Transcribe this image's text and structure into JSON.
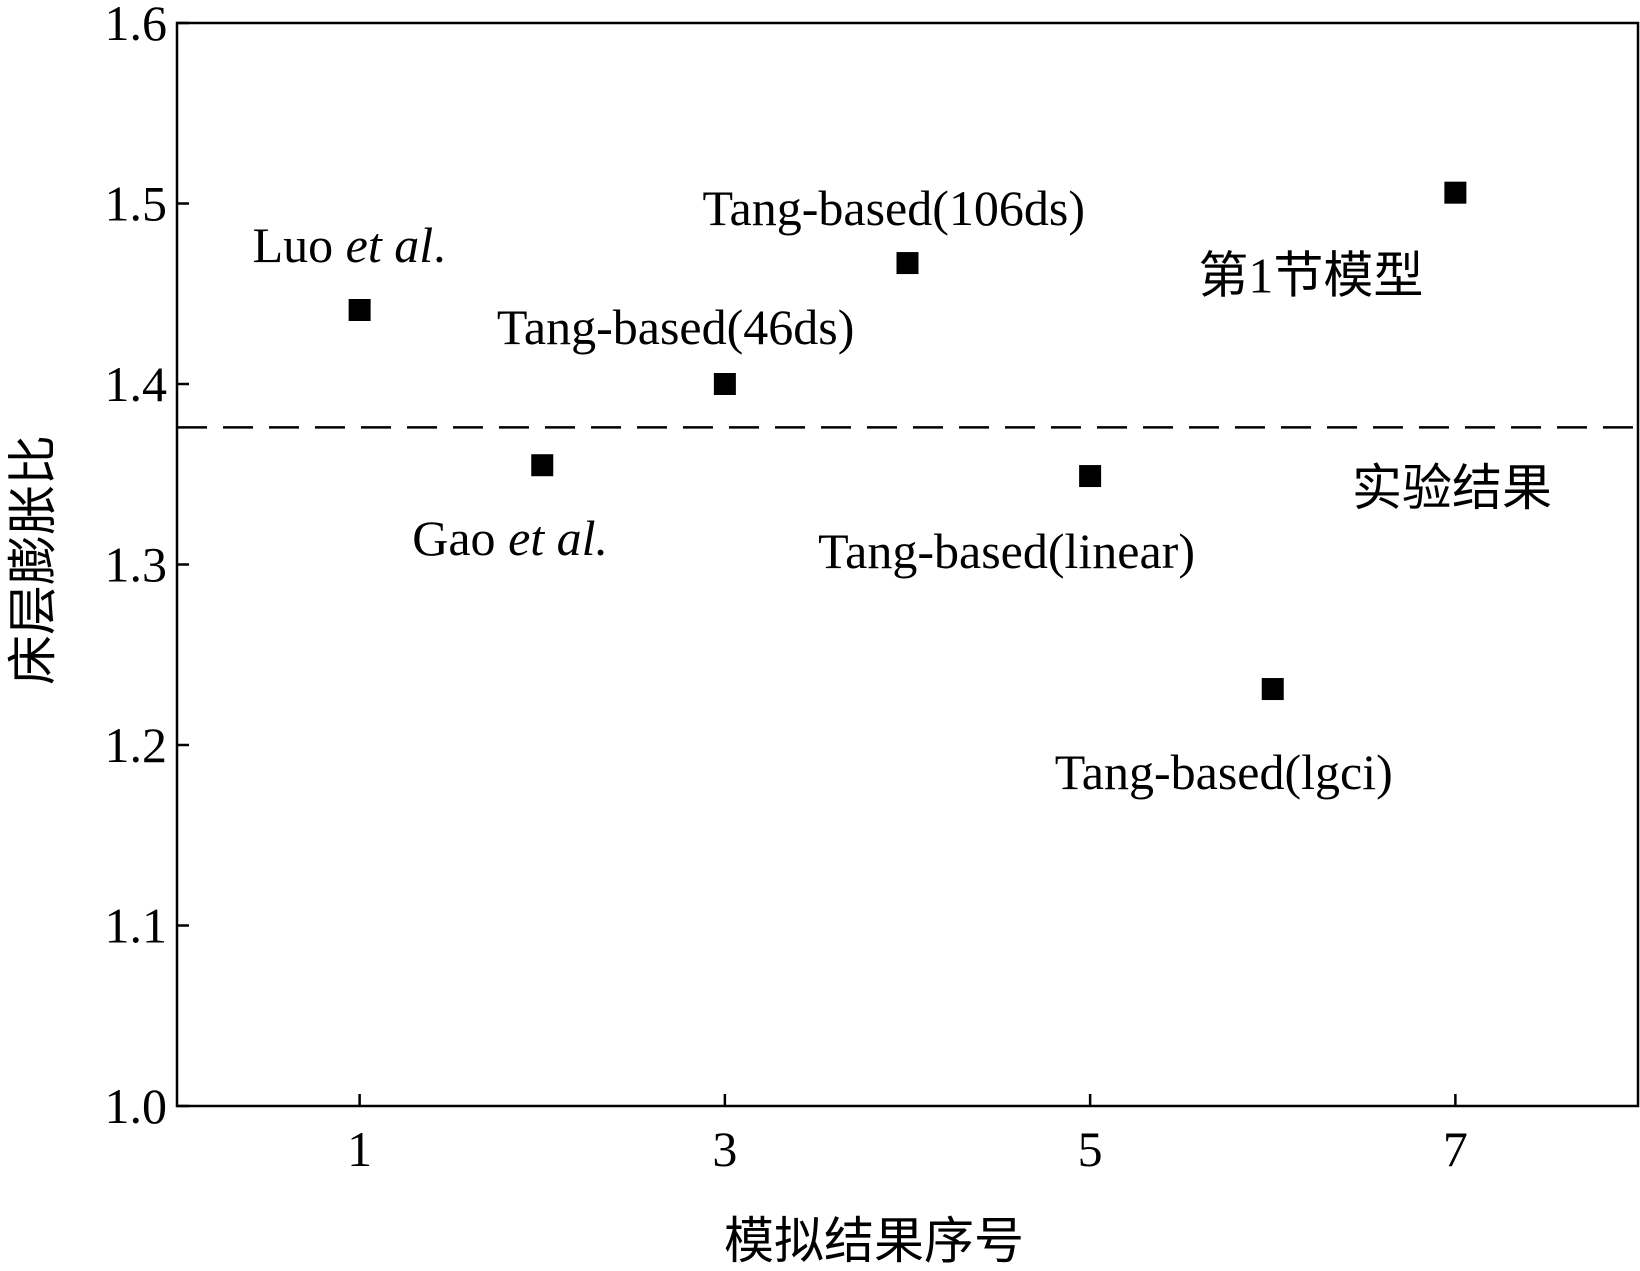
{
  "chart_data": {
    "type": "scatter",
    "xlabel": "模拟结果序号",
    "ylabel": "床层膨胀比",
    "xlim": [
      0,
      8
    ],
    "ylim": [
      1.0,
      1.6
    ],
    "xticks": [
      1,
      3,
      5,
      7
    ],
    "yticks": [
      1.0,
      1.1,
      1.2,
      1.3,
      1.4,
      1.5,
      1.6
    ],
    "grid": false,
    "legend": "none",
    "points": [
      {
        "x": 1,
        "y": 1.441,
        "label": "Luo",
        "label_italic": "et al",
        "label_tail": "."
      },
      {
        "x": 2,
        "y": 1.355,
        "label": "Gao",
        "label_italic": "et al.",
        "label_tail": ""
      },
      {
        "x": 3,
        "y": 1.4,
        "label": "Tang-based(46ds)",
        "label_italic": "",
        "label_tail": ""
      },
      {
        "x": 4,
        "y": 1.467,
        "label": "Tang-based(106ds)",
        "label_italic": "",
        "label_tail": ""
      },
      {
        "x": 5,
        "y": 1.349,
        "label": "Tang-based(linear)",
        "label_italic": "",
        "label_tail": ""
      },
      {
        "x": 6,
        "y": 1.231,
        "label": "Tang-based(lgci)",
        "label_italic": "",
        "label_tail": ""
      },
      {
        "x": 7,
        "y": 1.506,
        "label": "第1节模型",
        "label_italic": "",
        "label_tail": ""
      }
    ],
    "reference_line": {
      "y": 1.376,
      "label": "实验结果",
      "style": "dashed"
    }
  }
}
